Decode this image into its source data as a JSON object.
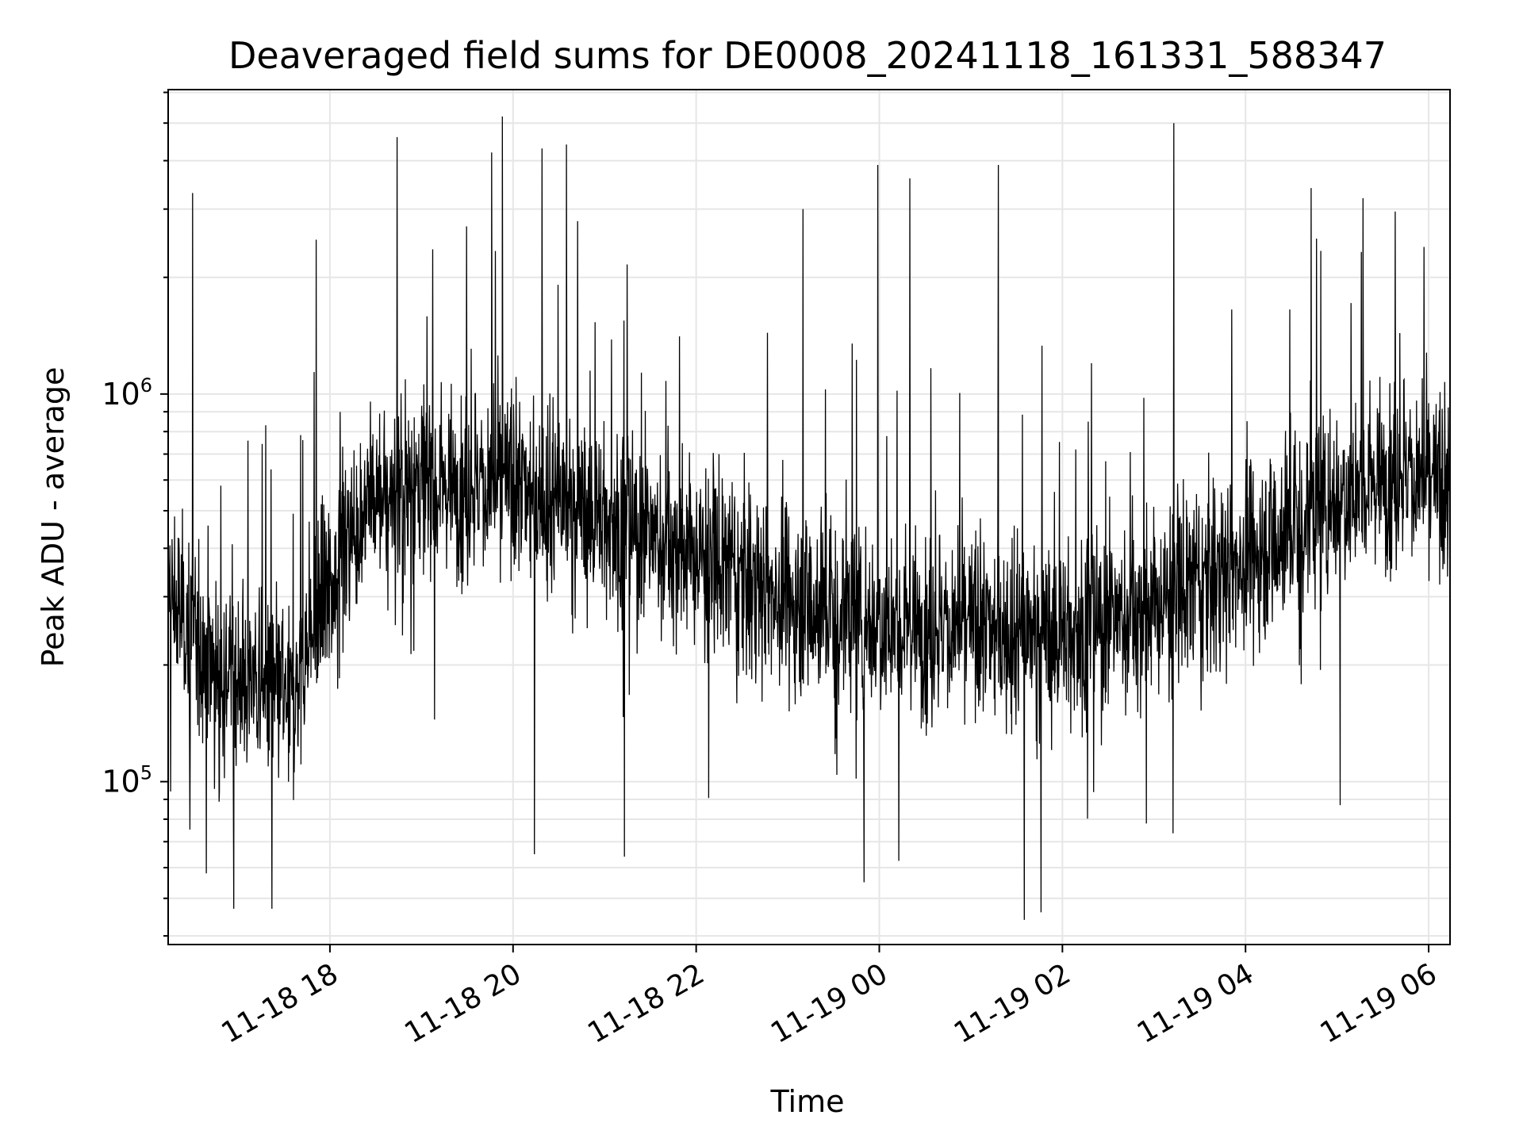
{
  "chart_data": {
    "type": "line",
    "title": "Deaveraged field sums for DE0008_20241118_161331_588347",
    "xlabel": "Time",
    "ylabel": "Peak ADU - average",
    "yscale": "log",
    "xlim": [
      "2024-11-18 16:14",
      "2024-11-19 06:14"
    ],
    "ylim": [
      38000,
      6100000
    ],
    "x_ticks": [
      {
        "t": "2024-11-18 18:00",
        "label": "11-18 18"
      },
      {
        "t": "2024-11-18 20:00",
        "label": "11-18 20"
      },
      {
        "t": "2024-11-18 22:00",
        "label": "11-18 22"
      },
      {
        "t": "2024-11-19 00:00",
        "label": "11-19 00"
      },
      {
        "t": "2024-11-19 02:00",
        "label": "11-19 02"
      },
      {
        "t": "2024-11-19 04:00",
        "label": "11-19 04"
      },
      {
        "t": "2024-11-19 06:00",
        "label": "11-19 06"
      }
    ],
    "y_ticks": [
      {
        "value": 100000,
        "base": "10",
        "exp": "5"
      },
      {
        "value": 1000000,
        "base": "10",
        "exp": "6"
      }
    ],
    "grid": true,
    "line_color": "#000000",
    "grid_color": "#e6e6e6",
    "baseline": {
      "x": [
        "2024-11-18 16:14",
        "2024-11-18 16:45",
        "2024-11-18 17:10",
        "2024-11-18 17:35",
        "2024-11-18 17:55",
        "2024-11-18 18:20",
        "2024-11-18 19:00",
        "2024-11-18 20:00",
        "2024-11-18 21:00",
        "2024-11-18 22:00",
        "2024-11-18 23:00",
        "2024-11-19 00:00",
        "2024-11-19 01:00",
        "2024-11-19 02:00",
        "2024-11-19 03:00",
        "2024-11-19 04:00",
        "2024-11-19 05:00",
        "2024-11-19 05:40",
        "2024-11-19 06:14"
      ],
      "y": [
        300000,
        200000,
        180000,
        160000,
        280000,
        500000,
        600000,
        580000,
        480000,
        380000,
        300000,
        260000,
        250000,
        240000,
        280000,
        380000,
        550000,
        650000,
        550000
      ]
    },
    "spikes": [
      {
        "x": "2024-11-18 16:30",
        "y": 3300000
      },
      {
        "x": "2024-11-18 17:51",
        "y": 2500000
      },
      {
        "x": "2024-11-18 18:44",
        "y": 4600000
      },
      {
        "x": "2024-11-18 19:46",
        "y": 4200000
      },
      {
        "x": "2024-11-18 19:53",
        "y": 5200000
      },
      {
        "x": "2024-11-18 20:19",
        "y": 4300000
      },
      {
        "x": "2024-11-18 20:35",
        "y": 4400000
      },
      {
        "x": "2024-11-18 23:10",
        "y": 3000000
      },
      {
        "x": "2024-11-18 23:59",
        "y": 3900000
      },
      {
        "x": "2024-11-19 00:20",
        "y": 3600000
      },
      {
        "x": "2024-11-19 01:18",
        "y": 3900000
      },
      {
        "x": "2024-11-19 03:13",
        "y": 5000000
      },
      {
        "x": "2024-11-19 04:43",
        "y": 3400000
      },
      {
        "x": "2024-11-19 05:17",
        "y": 3200000
      }
    ],
    "dips": [
      {
        "x": "2024-11-18 16:39",
        "y": 58000
      },
      {
        "x": "2024-11-18 16:57",
        "y": 47000
      },
      {
        "x": "2024-11-18 17:22",
        "y": 47000
      },
      {
        "x": "2024-11-18 20:14",
        "y": 65000
      },
      {
        "x": "2024-11-18 21:13",
        "y": 64000
      },
      {
        "x": "2024-11-18 23:50",
        "y": 55000
      },
      {
        "x": "2024-11-19 01:35",
        "y": 44000
      },
      {
        "x": "2024-11-19 01:46",
        "y": 46000
      },
      {
        "x": "2024-11-19 02:55",
        "y": 78000
      },
      {
        "x": "2024-11-19 05:02",
        "y": 87000
      }
    ]
  }
}
